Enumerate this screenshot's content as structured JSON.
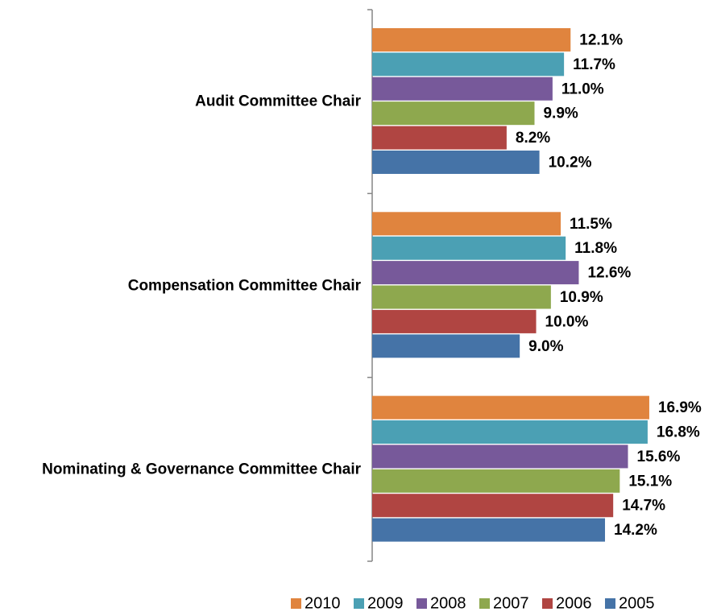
{
  "chart_data": {
    "type": "hbar",
    "categories": [
      "Audit Committee Chair",
      "Compensation Committee Chair",
      "Nominating & Governance Committee Chair"
    ],
    "series": [
      {
        "name": "2010",
        "color": "#E0843E",
        "values": [
          12.1,
          11.5,
          16.9
        ],
        "value_labels": [
          "12.1%",
          "11.5%",
          "16.9%"
        ]
      },
      {
        "name": "2009",
        "color": "#4BA0B4",
        "values": [
          11.7,
          11.8,
          16.8
        ],
        "value_labels": [
          "11.7%",
          "11.8%",
          "16.8%"
        ]
      },
      {
        "name": "2008",
        "color": "#77599A",
        "values": [
          11.0,
          12.6,
          15.6
        ],
        "value_labels": [
          "11.0%",
          "12.6%",
          "15.6%"
        ]
      },
      {
        "name": "2007",
        "color": "#8EA84E",
        "values": [
          9.9,
          10.9,
          15.1
        ],
        "value_labels": [
          "9.9%",
          "10.9%",
          "15.1%"
        ]
      },
      {
        "name": "2006",
        "color": "#B04542",
        "values": [
          8.2,
          10.0,
          14.7
        ],
        "value_labels": [
          "8.2%",
          "10.0%",
          "14.7%"
        ]
      },
      {
        "name": "2005",
        "color": "#4573A7",
        "values": [
          10.2,
          9.0,
          14.2
        ],
        "value_labels": [
          "10.2%",
          "9.0%",
          "14.2%"
        ]
      }
    ],
    "xlim": [
      0,
      17
    ],
    "legend": "bottom"
  }
}
